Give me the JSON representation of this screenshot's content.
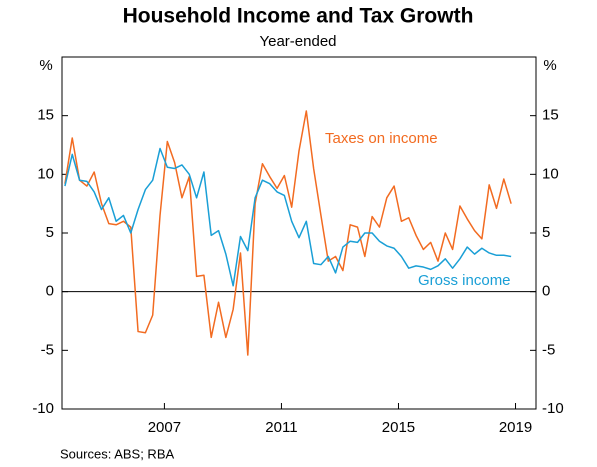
{
  "chart_data": {
    "type": "line",
    "title": "Household Income and Tax Growth",
    "subtitle": "Year-ended",
    "y_unit": "%",
    "y2_unit": "%",
    "source": "Sources:   ABS; RBA",
    "x": [
      2003.6,
      2003.85,
      2004.1,
      2004.35,
      2004.6,
      2004.85,
      2005.1,
      2005.35,
      2005.6,
      2005.85,
      2006.1,
      2006.35,
      2006.6,
      2006.85,
      2007.1,
      2007.35,
      2007.6,
      2007.85,
      2008.1,
      2008.35,
      2008.6,
      2008.85,
      2009.1,
      2009.35,
      2009.6,
      2009.85,
      2010.1,
      2010.35,
      2010.6,
      2010.85,
      2011.1,
      2011.35,
      2011.6,
      2011.85,
      2012.1,
      2012.35,
      2012.6,
      2012.85,
      2013.1,
      2013.35,
      2013.6,
      2013.85,
      2014.1,
      2014.35,
      2014.6,
      2014.85,
      2015.1,
      2015.35,
      2015.6,
      2015.85,
      2016.1,
      2016.35,
      2016.6,
      2016.85,
      2017.1,
      2017.35,
      2017.6,
      2017.85,
      2018.1,
      2018.35,
      2018.6,
      2018.85
    ],
    "series": [
      {
        "name": "Taxes on income",
        "color": "#f26b21",
        "values": [
          9.2,
          13.1,
          9.5,
          9.0,
          10.2,
          7.5,
          5.8,
          5.7,
          6.0,
          5.5,
          -3.4,
          -3.5,
          -2.0,
          6.5,
          12.8,
          11.0,
          8.0,
          9.8,
          1.3,
          1.4,
          -3.9,
          -0.9,
          -3.9,
          -1.5,
          3.3,
          -5.4,
          7.5,
          10.9,
          9.8,
          8.8,
          9.9,
          7.2,
          12.0,
          15.4,
          10.5,
          6.5,
          2.6,
          3.0,
          1.8,
          5.7,
          5.5,
          3.0,
          6.4,
          5.5,
          8.0,
          9.0,
          6.0,
          6.3,
          4.8,
          3.6,
          4.2,
          2.6,
          5.0,
          3.6,
          7.3,
          6.2,
          5.2,
          4.5,
          9.1,
          7.1,
          9.6,
          7.5
        ]
      },
      {
        "name": "Gross income",
        "color": "#1a9fd6",
        "values": [
          9.0,
          11.7,
          9.5,
          9.4,
          8.5,
          7.0,
          8.0,
          6.0,
          6.5,
          5.0,
          7.0,
          8.7,
          9.5,
          12.2,
          10.6,
          10.5,
          10.8,
          10.0,
          8.0,
          10.2,
          4.8,
          5.2,
          3.2,
          0.5,
          4.7,
          3.5,
          8.0,
          9.5,
          9.2,
          8.5,
          8.2,
          6.0,
          4.6,
          6.0,
          2.4,
          2.3,
          3.0,
          1.6,
          3.8,
          4.3,
          4.2,
          5.0,
          5.0,
          4.3,
          3.9,
          3.7,
          3.0,
          2.0,
          2.2,
          2.1,
          1.9,
          2.2,
          2.8,
          2.0,
          2.8,
          3.8,
          3.2,
          3.7,
          3.3,
          3.1,
          3.1,
          3.0
        ]
      }
    ],
    "xlim": [
      2003.5,
      2019.7
    ],
    "xticks": [
      2007,
      2011,
      2015,
      2019
    ],
    "ylim": [
      -10,
      20
    ],
    "yticks": [
      -10,
      -5,
      0,
      5,
      10,
      15
    ],
    "y2lim": [
      -10,
      20
    ],
    "y2ticks": [
      -10,
      -5,
      0,
      5,
      10,
      15
    ],
    "zero_line": true,
    "grid": false
  }
}
